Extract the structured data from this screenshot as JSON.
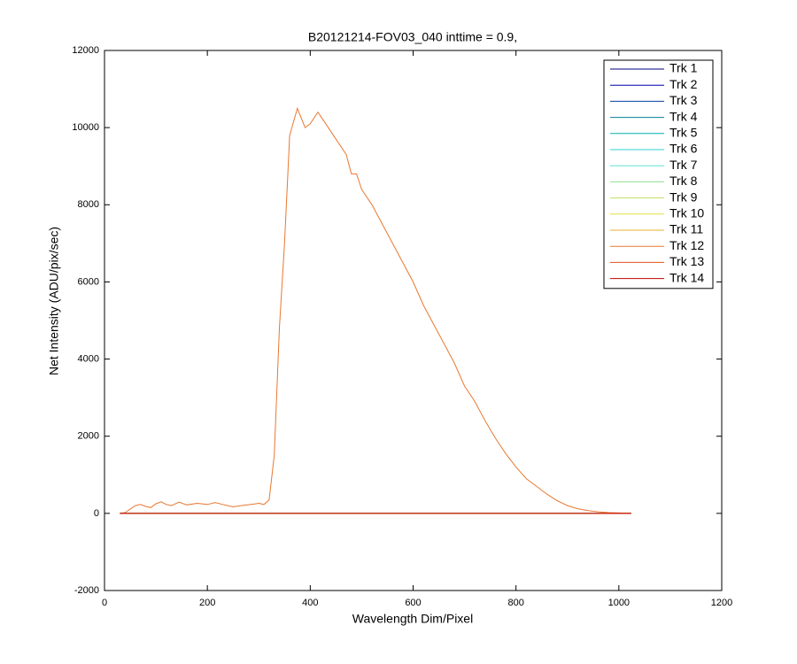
{
  "chart_data": {
    "type": "line",
    "title": "B20121214-FOV03_040 inttime = 0.9,",
    "x_label": "Wavelength Dim/Pixel",
    "y_label": "Net Intensity (ADU/pix/sec)",
    "xlim": [
      0,
      1200
    ],
    "xticks": [
      0,
      200,
      400,
      600,
      800,
      1000,
      1200
    ],
    "ylim": [
      -2000,
      12000
    ],
    "yticks": [
      -2000,
      0,
      2000,
      4000,
      6000,
      8000,
      10000,
      12000
    ],
    "legend": "upper right",
    "series": [
      {
        "name": "Trk 1",
        "color": "#000080",
        "x": [
          30,
          1024
        ],
        "values": [
          0,
          0
        ]
      },
      {
        "name": "Trk 2",
        "color": "#0000b0",
        "x": [
          30,
          1024
        ],
        "values": [
          0,
          0
        ]
      },
      {
        "name": "Trk 3",
        "color": "#0040a0",
        "x": [
          30,
          1024
        ],
        "values": [
          0,
          0
        ]
      },
      {
        "name": "Trk 4",
        "color": "#008090",
        "x": [
          30,
          1024
        ],
        "values": [
          0,
          0
        ]
      },
      {
        "name": "Trk 5",
        "color": "#00b0b0",
        "x": [
          30,
          1024
        ],
        "values": [
          0,
          0
        ]
      },
      {
        "name": "Trk 6",
        "color": "#30d0d0",
        "x": [
          30,
          1024
        ],
        "values": [
          0,
          0
        ]
      },
      {
        "name": "Trk 7",
        "color": "#60e0d0",
        "x": [
          30,
          1024
        ],
        "values": [
          0,
          0
        ]
      },
      {
        "name": "Trk 8",
        "color": "#90e090",
        "x": [
          30,
          1024
        ],
        "values": [
          0,
          0
        ]
      },
      {
        "name": "Trk 9",
        "color": "#c0e060",
        "x": [
          30,
          1024
        ],
        "values": [
          0,
          0
        ]
      },
      {
        "name": "Trk 10",
        "color": "#e0e040",
        "x": [
          30,
          1024
        ],
        "values": [
          0,
          0
        ]
      },
      {
        "name": "Trk 11",
        "color": "#e8b030",
        "x": [
          30,
          1024
        ],
        "values": [
          0,
          0
        ]
      },
      {
        "name": "Trk 12",
        "color": "#e87830",
        "x": [
          30,
          40,
          60,
          70,
          80,
          90,
          100,
          110,
          120,
          130,
          145,
          160,
          180,
          200,
          215,
          230,
          250,
          270,
          290,
          300,
          310,
          320,
          330,
          340,
          350,
          360,
          375,
          390,
          400,
          415,
          430,
          450,
          470,
          480,
          490,
          500,
          520,
          540,
          560,
          580,
          600,
          620,
          640,
          660,
          680,
          700,
          720,
          740,
          760,
          780,
          800,
          820,
          840,
          860,
          880,
          900,
          920,
          940,
          960,
          980,
          1000,
          1024
        ],
        "values": [
          0,
          20,
          200,
          230,
          180,
          150,
          250,
          300,
          230,
          200,
          290,
          220,
          260,
          230,
          280,
          230,
          170,
          210,
          240,
          260,
          230,
          350,
          1500,
          4800,
          7000,
          9800,
          10500,
          10000,
          10100,
          10400,
          10100,
          9700,
          9300,
          8800,
          8800,
          8400,
          8000,
          7500,
          7000,
          6500,
          6000,
          5400,
          4900,
          4400,
          3900,
          3300,
          2900,
          2400,
          1950,
          1550,
          1200,
          900,
          700,
          500,
          330,
          200,
          120,
          70,
          40,
          20,
          10,
          0
        ]
      },
      {
        "name": "Trk 13",
        "color": "#e05020",
        "x": [
          30,
          1024
        ],
        "values": [
          0,
          0
        ]
      },
      {
        "name": "Trk 14",
        "color": "#c00000",
        "x": [
          30,
          1024
        ],
        "values": [
          0,
          0
        ]
      }
    ]
  }
}
